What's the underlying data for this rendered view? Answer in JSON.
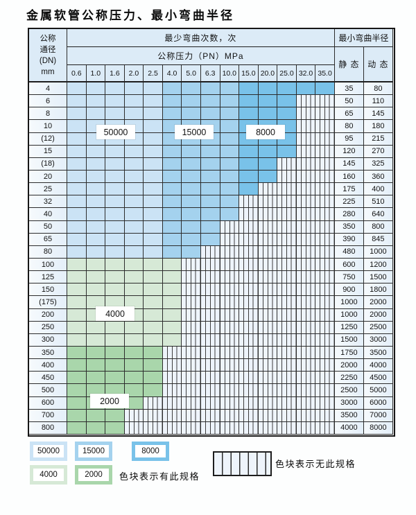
{
  "title": "金属软管公称压力、最小弯曲半径",
  "table": {
    "dn_header": [
      "公称",
      "通径",
      "(DN)",
      "mm"
    ],
    "cycles_header": "最少弯曲次数，次",
    "pressure_header": "公称压力（PN）MPa",
    "pressures": [
      "0.6",
      "1.0",
      "1.6",
      "2.0",
      "2.5",
      "4.0",
      "5.0",
      "6.3",
      "10.0",
      "15.0",
      "20.0",
      "25.0",
      "32.0",
      "35.0"
    ],
    "radius_header": "最小弯曲半径",
    "static_label": "静 态",
    "dynamic_label": "动 态",
    "rows": [
      {
        "dn": "4",
        "last": 14,
        "zone": "blue",
        "static": "35",
        "dynamic": "80"
      },
      {
        "dn": "6",
        "last": 12,
        "zone": "blue",
        "static": "50",
        "dynamic": "110"
      },
      {
        "dn": "8",
        "last": 12,
        "zone": "blue",
        "static": "65",
        "dynamic": "145"
      },
      {
        "dn": "10",
        "last": 12,
        "zone": "blue",
        "static": "80",
        "dynamic": "180"
      },
      {
        "dn": "(12)",
        "last": 12,
        "zone": "blue",
        "static": "95",
        "dynamic": "215"
      },
      {
        "dn": "15",
        "last": 12,
        "zone": "blue",
        "static": "120",
        "dynamic": "270"
      },
      {
        "dn": "(18)",
        "last": 11,
        "zone": "blue",
        "static": "145",
        "dynamic": "325"
      },
      {
        "dn": "20",
        "last": 11,
        "zone": "blue",
        "static": "160",
        "dynamic": "360"
      },
      {
        "dn": "25",
        "last": 10,
        "zone": "blue",
        "static": "175",
        "dynamic": "400"
      },
      {
        "dn": "32",
        "last": 9,
        "zone": "blue",
        "static": "225",
        "dynamic": "510"
      },
      {
        "dn": "40",
        "last": 9,
        "zone": "blue",
        "static": "280",
        "dynamic": "640"
      },
      {
        "dn": "50",
        "last": 8,
        "zone": "blue",
        "static": "350",
        "dynamic": "800"
      },
      {
        "dn": "65",
        "last": 8,
        "zone": "blue",
        "static": "390",
        "dynamic": "845"
      },
      {
        "dn": "80",
        "last": 7,
        "zone": "blue",
        "static": "480",
        "dynamic": "1000"
      },
      {
        "dn": "100",
        "last": 6,
        "zone": "g1",
        "static": "600",
        "dynamic": "1200"
      },
      {
        "dn": "125",
        "last": 6,
        "zone": "g1",
        "static": "750",
        "dynamic": "1500"
      },
      {
        "dn": "150",
        "last": 6,
        "zone": "g1",
        "static": "900",
        "dynamic": "1800"
      },
      {
        "dn": "(175)",
        "last": 6,
        "zone": "g1",
        "static": "1000",
        "dynamic": "2000"
      },
      {
        "dn": "200",
        "last": 6,
        "zone": "g1",
        "static": "1000",
        "dynamic": "2000"
      },
      {
        "dn": "250",
        "last": 6,
        "zone": "g1",
        "static": "1250",
        "dynamic": "2500"
      },
      {
        "dn": "300",
        "last": 6,
        "zone": "g1",
        "static": "1500",
        "dynamic": "3000"
      },
      {
        "dn": "350",
        "last": 5,
        "zone": "g2",
        "static": "1750",
        "dynamic": "3500"
      },
      {
        "dn": "400",
        "last": 5,
        "zone": "g2",
        "static": "2000",
        "dynamic": "4000"
      },
      {
        "dn": "450",
        "last": 5,
        "zone": "g2",
        "static": "2250",
        "dynamic": "4500"
      },
      {
        "dn": "500",
        "last": 5,
        "zone": "g2",
        "static": "2500",
        "dynamic": "5000"
      },
      {
        "dn": "600",
        "last": 4,
        "zone": "g2",
        "static": "3000",
        "dynamic": "6000"
      },
      {
        "dn": "700",
        "last": 3,
        "zone": "g2",
        "static": "3500",
        "dynamic": "7000"
      },
      {
        "dn": "800",
        "last": 3,
        "zone": "g2",
        "static": "4000",
        "dynamic": "8000"
      }
    ]
  },
  "legend": {
    "swatches": [
      {
        "label": "50000",
        "color": "#cbe3f5"
      },
      {
        "label": "15000",
        "color": "#a4d2ee"
      },
      {
        "label": "8000",
        "color": "#79c2e9"
      },
      {
        "label": "4000",
        "color": "#d6e9d6"
      },
      {
        "label": "2000",
        "color": "#a9d6ab"
      }
    ],
    "has_spec_note": "色块表示有此规格",
    "no_spec_note": "色块表示无此规格"
  },
  "colors": {
    "cycles_50000": "#cbe3f5",
    "cycles_15000": "#a4d2ee",
    "cycles_8000": "#79c2e9",
    "cycles_4000": "#d6e9d6",
    "cycles_2000": "#a9d6ab",
    "header_bg": "#dcebf7",
    "hatch_bg": "#eef4fb"
  }
}
